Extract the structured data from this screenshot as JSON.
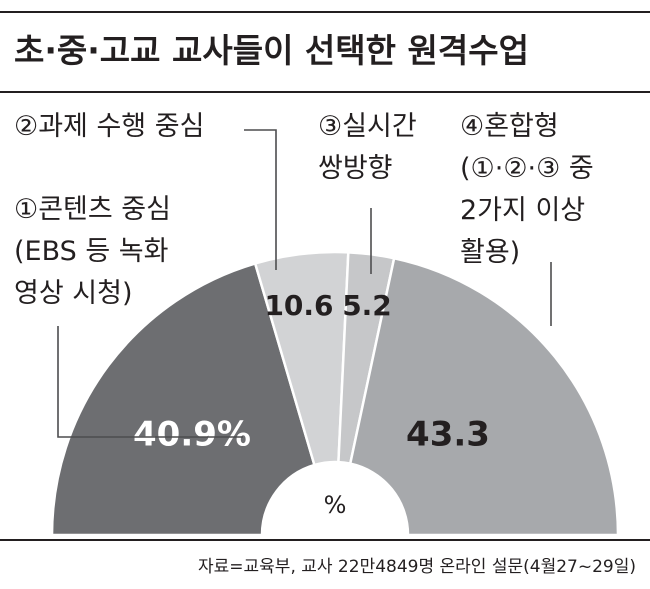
{
  "chart_data": {
    "type": "pie",
    "layout": "half-donut",
    "title": "초·중·고교 교사들이 선택한 원격수업",
    "unit_label": "%",
    "source": "자료=교육부, 교사 22만4849명 온라인 설문(4월27~29일)",
    "slices": [
      {
        "key": "content",
        "value": 40.9,
        "value_label": "40.9%",
        "label_lines": [
          "①콘텐츠 중심",
          "(EBS 등 녹화",
          "영상 시청)"
        ],
        "color": "#6d6e71",
        "value_color": "#ffffff"
      },
      {
        "key": "assignment",
        "value": 10.6,
        "value_label": "10.6",
        "label_lines": [
          "②과제 수행 중심"
        ],
        "color": "#d2d3d5",
        "value_color": "#231f20"
      },
      {
        "key": "realtime",
        "value": 5.2,
        "value_label": "5.2",
        "label_lines": [
          "③실시간",
          "쌍방향"
        ],
        "color": "#c6c7c9",
        "value_color": "#231f20"
      },
      {
        "key": "mixed",
        "value": 43.3,
        "value_label": "43.3",
        "label_lines": [
          "④혼합형",
          "(①·②·③ 중",
          "2가지 이상",
          "활용)"
        ],
        "color": "#a7a9ac",
        "value_color": "#231f20"
      }
    ]
  },
  "colors": {
    "divider": "#231f20",
    "text": "#231f20",
    "leader": "#4d4d4f",
    "slice_border": "#ffffff"
  }
}
